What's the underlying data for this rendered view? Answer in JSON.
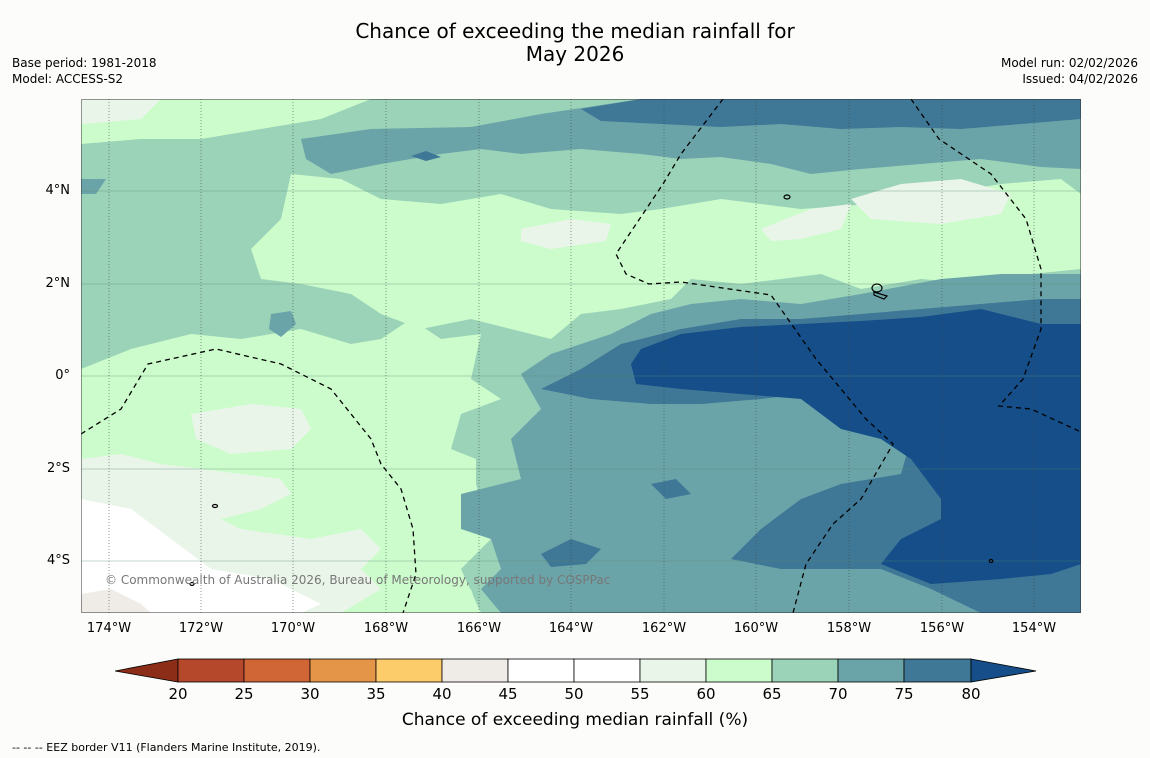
{
  "header": {
    "title_line1": "Chance of exceeding the median rainfall for",
    "title_line2": "May 2026",
    "base_period": "Base period: 1981-2018",
    "model": "Model: ACCESS-S2",
    "model_run": "Model run: 02/02/2026",
    "issued": "Issued: 04/02/2026"
  },
  "map": {
    "lat_labels": [
      "4°N",
      "2°N",
      "0°",
      "2°S",
      "4°S"
    ],
    "lon_labels": [
      "174°W",
      "172°W",
      "170°W",
      "168°W",
      "166°W",
      "164°W",
      "162°W",
      "160°W",
      "158°W",
      "156°W",
      "154°W"
    ],
    "copyright": "© Commonwealth of Australia 2026, Bureau of Meteorology, supported by COSPPac"
  },
  "colorbar": {
    "ticks": [
      "20",
      "25",
      "30",
      "35",
      "40",
      "45",
      "50",
      "55",
      "60",
      "65",
      "70",
      "75",
      "80"
    ],
    "label": "Chance of exceeding median rainfall (%)",
    "colors": {
      "lt20": "#8c2d17",
      "c20_25": "#b5472a",
      "c25_30": "#d06536",
      "c30_35": "#e49548",
      "c35_40": "#fdcc6a",
      "c40_45": "#efebe6",
      "c45_55": "#ffffff",
      "c55_60": "#eaf5ea",
      "c60_65": "#ccfccc",
      "c65_70": "#9bd3b8",
      "c70_75": "#6ba4a8",
      "c75_80": "#3f7796",
      "gt80": "#154e88"
    }
  },
  "footer": {
    "legend": "--  --  -- EEZ border V11 (Flanders Marine Institute, 2019)."
  }
}
